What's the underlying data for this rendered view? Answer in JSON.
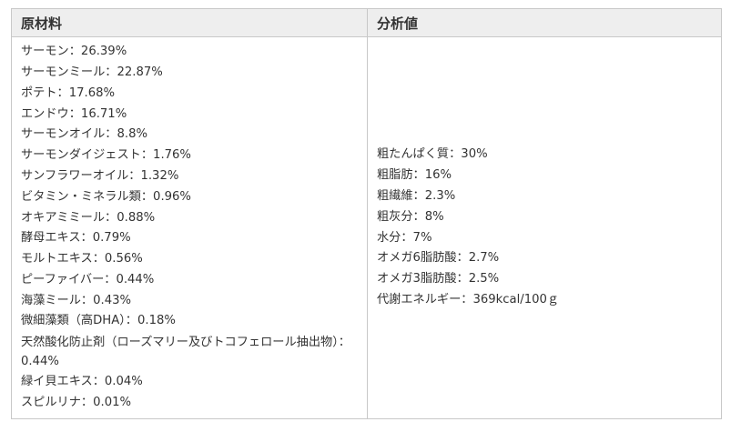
{
  "table": {
    "headers": {
      "ingredients": "原材料",
      "analysis": "分析値"
    },
    "ingredients": [
      "サーモン：26.39%",
      "サーモンミール：22.87%",
      "ポテト：17.68%",
      "エンドウ：16.71%",
      "サーモンオイル：8.8%",
      "サーモンダイジェスト：1.76%",
      "サンフラワーオイル：1.32%",
      "ビタミン・ミネラル類：0.96%",
      "オキアミミール：0.88%",
      "酵母エキス：0.79%",
      "モルトエキス：0.56%",
      "ピーファイバー：0.44%",
      "海藻ミール：0.43%",
      "微細藻類（高DHA）：0.18%",
      "天然酸化防止剤（ローズマリー及びトコフェロール抽出物）：0.44%",
      "緑イ貝エキス：0.04%",
      "スピルリナ：0.01%"
    ],
    "analysis": [
      "粗たんぱく質：30%",
      "粗脂肪：16%",
      "粗繊維：2.3%",
      "粗灰分：8%",
      "水分：7%",
      "オメガ6脂肪酸：2.7%",
      "オメガ3脂肪酸：2.5%",
      "代謝エネルギー：369kcal/100ｇ"
    ]
  }
}
